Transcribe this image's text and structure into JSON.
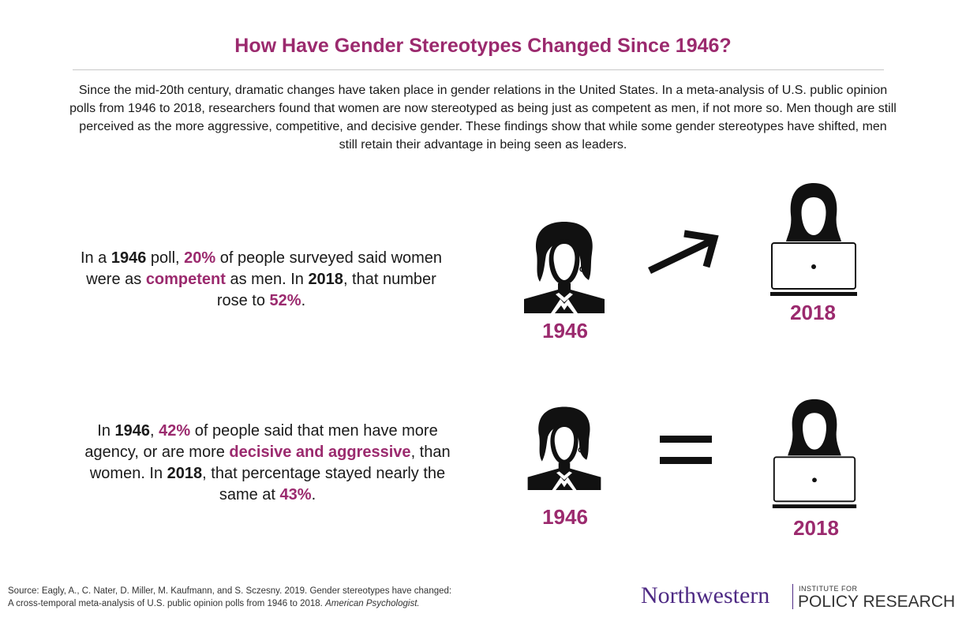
{
  "title": "How Have Gender Stereotypes Changed Since 1946?",
  "intro": "Since the mid-20th century, dramatic changes have taken place in gender relations in the United States.  In a meta-analysis of U.S. public opinion polls from 1946 to 2018, researchers found that women are now stereotyped as being just as competent as men, if not more so. Men though are still perceived as the more aggressive, competitive, and decisive gender. These findings show that while some gender stereotypes have shifted, men still retain their advantage in being seen as leaders.",
  "colors": {
    "accent": "#9b2a6e",
    "text": "#1a1a1a",
    "brand": "#4e2a84"
  },
  "stat1": {
    "p1": "In a ",
    "year_a": "1946",
    "p2": " poll, ",
    "pct_a": "20%",
    "p3": " of people surveyed said women were as ",
    "trait": "competent",
    "p4": " as men. In ",
    "year_b": "2018",
    "p5": ", that number rose to ",
    "pct_b": "52%",
    "p6": ".",
    "from_label": "1946",
    "to_label": "2018",
    "change_icon": "arrow-up-right-icon"
  },
  "stat2": {
    "p1": "In ",
    "year_a": "1946",
    "p2": ", ",
    "pct_a": "42%",
    "p3": " of people said that men have more agency, or are more ",
    "trait": "decisive and aggressive",
    "p4": ", than women. In ",
    "year_b": "2018",
    "p5": ", that percentage stayed nearly the same at  ",
    "pct_b": "43%",
    "p6": ".",
    "from_label": "1946",
    "to_label": "2018",
    "change_icon": "equals-icon"
  },
  "source": {
    "line1": "Source: Eagly, A., C. Nater, D. Miller, M. Kaufmann, and S. Sczesny. 2019. Gender stereotypes have changed:",
    "line2": "A cross-temporal meta-analysis of U.S. public opinion polls from 1946 to 2018. ",
    "journal": "American Psychologist."
  },
  "logo": {
    "university": "Northwestern",
    "institute_small": "INSTITUTE FOR",
    "institute_large": "POLICY RESEARCH"
  }
}
